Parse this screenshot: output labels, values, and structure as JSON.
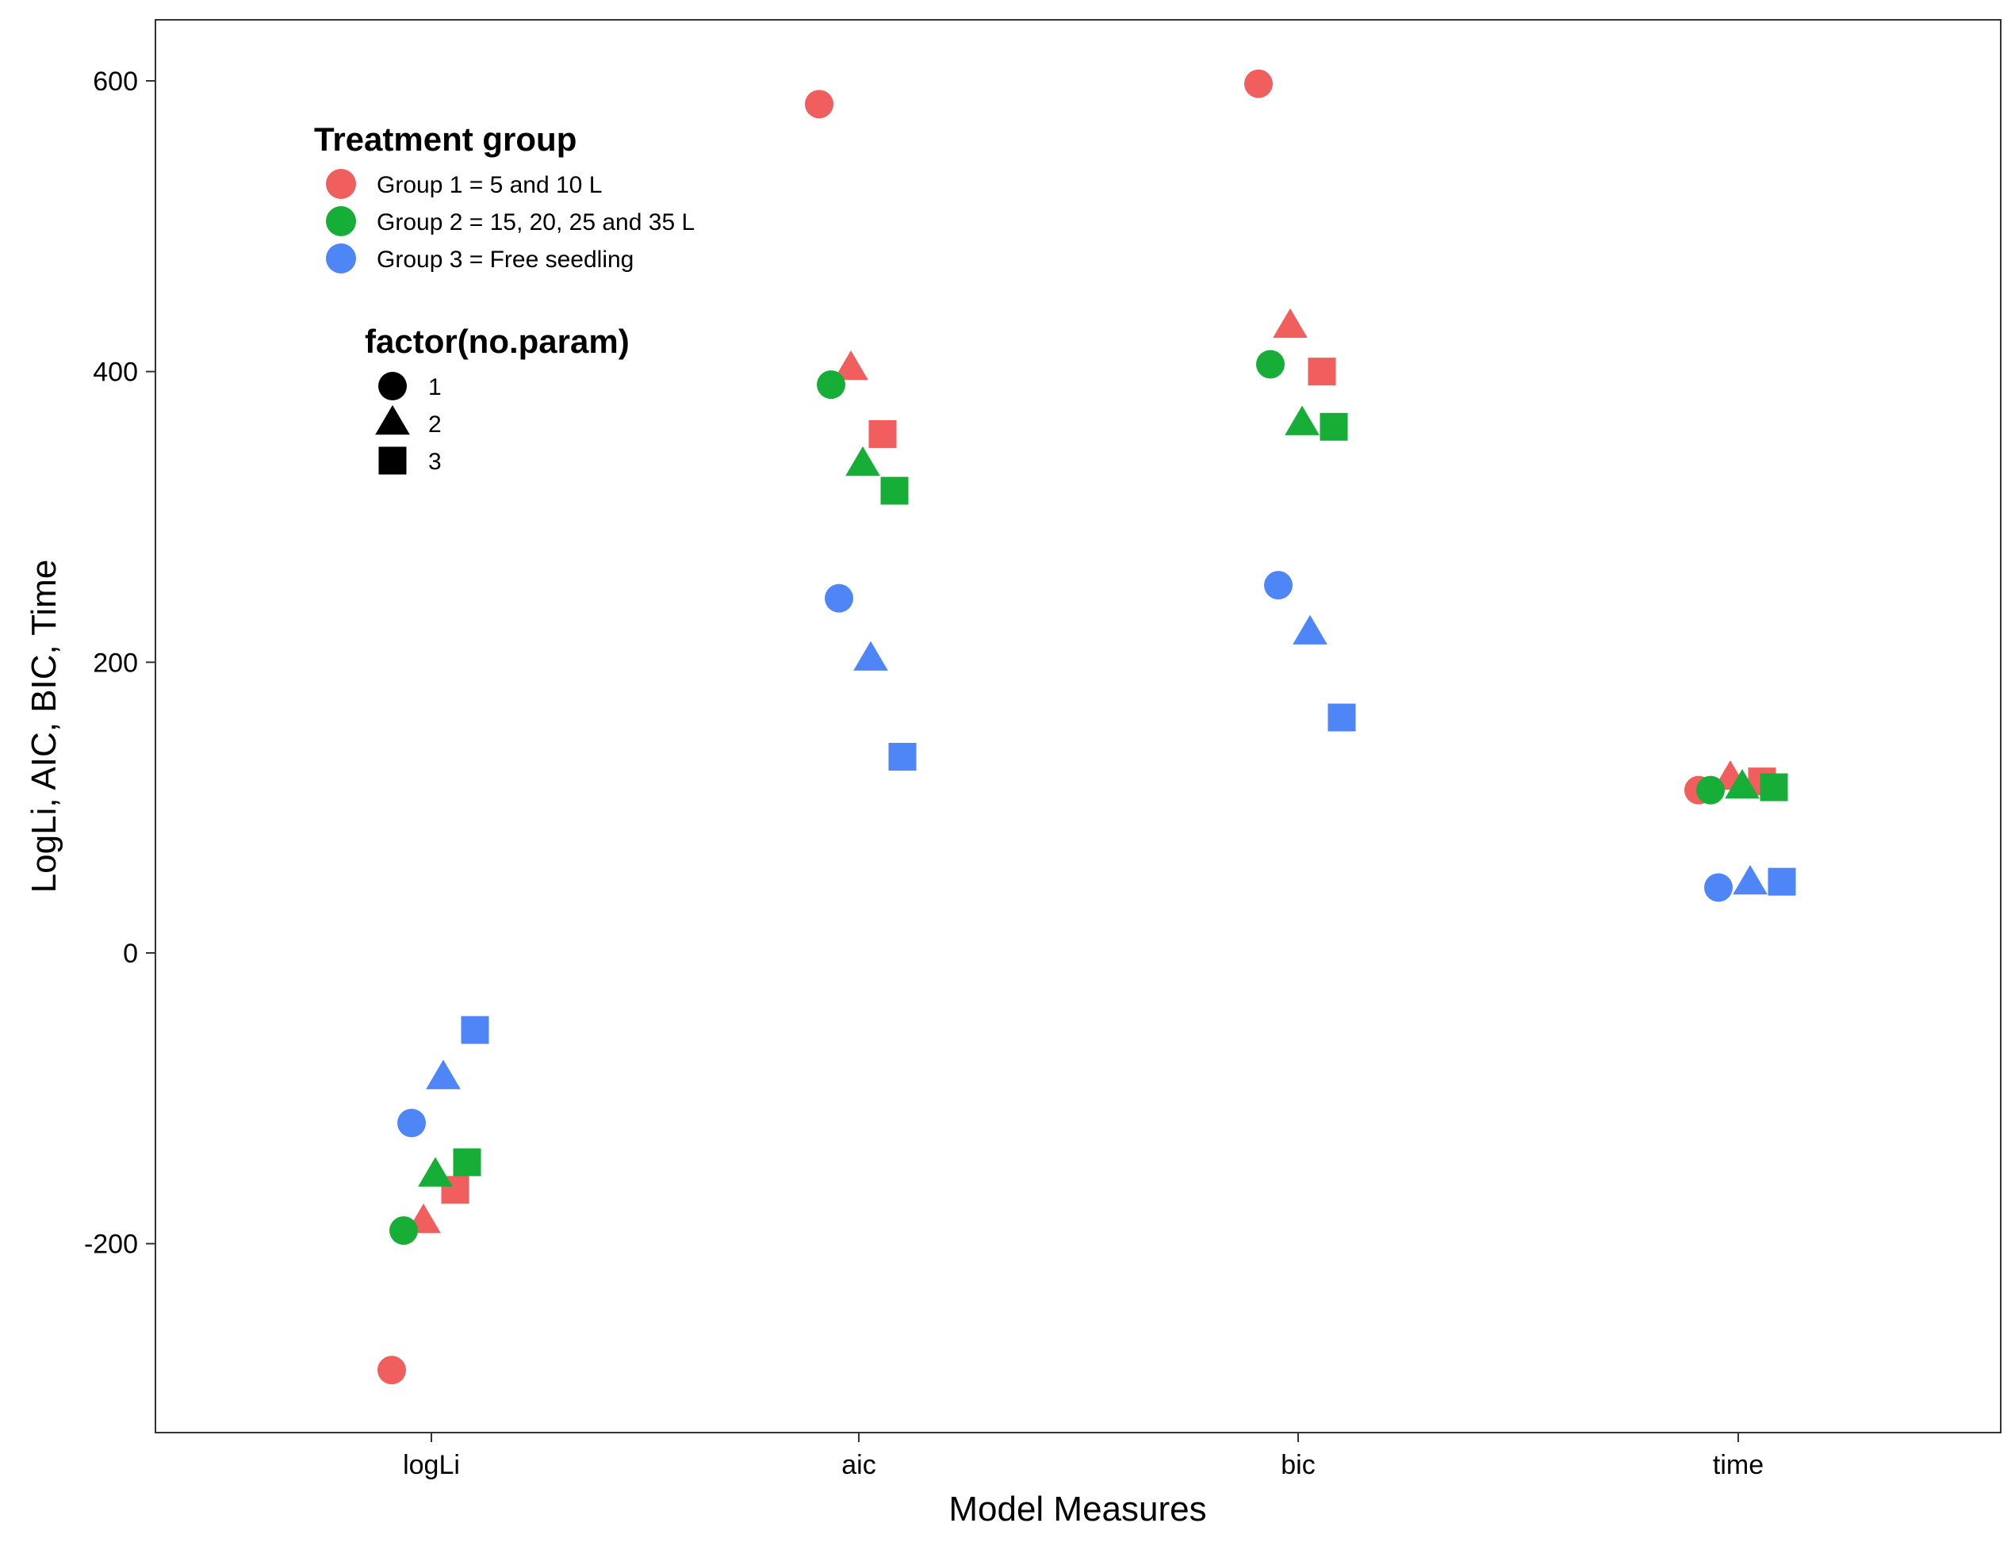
{
  "chart_data": {
    "type": "scatter",
    "xlabel": "Model Measures",
    "ylabel": "LogLi, AIC, BIC, Time",
    "categories": [
      "logLi",
      "aic",
      "bic",
      "time"
    ],
    "ylim": [
      -330,
      642
    ],
    "y_ticks": [
      -200,
      0,
      200,
      400,
      600
    ],
    "y_tick_labels": [
      "-200",
      "0",
      "200",
      "400",
      "600"
    ],
    "grid": false,
    "legend_placement": "top-left",
    "colors": {
      "group1": "#F05E5E",
      "group2": "#16AE36",
      "group3": "#4F86F7"
    },
    "legends": {
      "color": {
        "title": "Treatment group",
        "entries": [
          {
            "key": "group1",
            "label": "Group 1 = 5 and 10 L"
          },
          {
            "key": "group2",
            "label": "Group 2 = 15, 20, 25 and 35 L"
          },
          {
            "key": "group3",
            "label": "Group 3 = Free seedling"
          }
        ]
      },
      "shape": {
        "title": "factor(no.param)",
        "entries": [
          {
            "shape": "circle",
            "label": "1"
          },
          {
            "shape": "triangle",
            "label": "2"
          },
          {
            "shape": "square",
            "label": "3"
          }
        ]
      }
    },
    "points": [
      {
        "measure": "logLi",
        "group": "group1",
        "no_param": 1,
        "value": -287
      },
      {
        "measure": "logLi",
        "group": "group1",
        "no_param": 2,
        "value": -185
      },
      {
        "measure": "logLi",
        "group": "group1",
        "no_param": 3,
        "value": -163
      },
      {
        "measure": "logLi",
        "group": "group2",
        "no_param": 1,
        "value": -191
      },
      {
        "measure": "logLi",
        "group": "group2",
        "no_param": 2,
        "value": -153
      },
      {
        "measure": "logLi",
        "group": "group2",
        "no_param": 3,
        "value": -144
      },
      {
        "measure": "logLi",
        "group": "group3",
        "no_param": 1,
        "value": -117
      },
      {
        "measure": "logLi",
        "group": "group3",
        "no_param": 2,
        "value": -86
      },
      {
        "measure": "logLi",
        "group": "group3",
        "no_param": 3,
        "value": -53
      },
      {
        "measure": "aic",
        "group": "group1",
        "no_param": 1,
        "value": 584
      },
      {
        "measure": "aic",
        "group": "group1",
        "no_param": 2,
        "value": 402
      },
      {
        "measure": "aic",
        "group": "group1",
        "no_param": 3,
        "value": 357
      },
      {
        "measure": "aic",
        "group": "group2",
        "no_param": 1,
        "value": 391
      },
      {
        "measure": "aic",
        "group": "group2",
        "no_param": 2,
        "value": 336
      },
      {
        "measure": "aic",
        "group": "group2",
        "no_param": 3,
        "value": 318
      },
      {
        "measure": "aic",
        "group": "group3",
        "no_param": 1,
        "value": 244
      },
      {
        "measure": "aic",
        "group": "group3",
        "no_param": 2,
        "value": 202
      },
      {
        "measure": "aic",
        "group": "group3",
        "no_param": 3,
        "value": 135
      },
      {
        "measure": "bic",
        "group": "group1",
        "no_param": 1,
        "value": 598
      },
      {
        "measure": "bic",
        "group": "group1",
        "no_param": 2,
        "value": 431
      },
      {
        "measure": "bic",
        "group": "group1",
        "no_param": 3,
        "value": 400
      },
      {
        "measure": "bic",
        "group": "group2",
        "no_param": 1,
        "value": 405
      },
      {
        "measure": "bic",
        "group": "group2",
        "no_param": 2,
        "value": 364
      },
      {
        "measure": "bic",
        "group": "group2",
        "no_param": 3,
        "value": 362
      },
      {
        "measure": "bic",
        "group": "group3",
        "no_param": 1,
        "value": 253
      },
      {
        "measure": "bic",
        "group": "group3",
        "no_param": 2,
        "value": 220
      },
      {
        "measure": "bic",
        "group": "group3",
        "no_param": 3,
        "value": 162
      },
      {
        "measure": "time",
        "group": "group1",
        "no_param": 1,
        "value": 112
      },
      {
        "measure": "time",
        "group": "group1",
        "no_param": 2,
        "value": 120
      },
      {
        "measure": "time",
        "group": "group1",
        "no_param": 3,
        "value": 118
      },
      {
        "measure": "time",
        "group": "group2",
        "no_param": 1,
        "value": 112
      },
      {
        "measure": "time",
        "group": "group2",
        "no_param": 2,
        "value": 114
      },
      {
        "measure": "time",
        "group": "group2",
        "no_param": 3,
        "value": 114
      },
      {
        "measure": "time",
        "group": "group3",
        "no_param": 1,
        "value": 45
      },
      {
        "measure": "time",
        "group": "group3",
        "no_param": 2,
        "value": 48
      },
      {
        "measure": "time",
        "group": "group3",
        "no_param": 3,
        "value": 49
      }
    ]
  }
}
